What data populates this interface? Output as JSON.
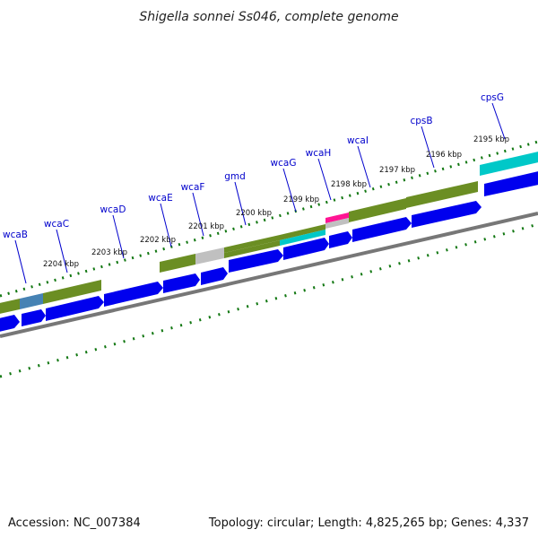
{
  "title": "Shigella sonnei Ss046, complete genome",
  "footer": {
    "accession": "Accession: NC_007384",
    "topology": "Topology: circular; Length: 4,825,265 bp; Genes: 4,337"
  },
  "colors": {
    "cds": "#0000ee",
    "cog_olive": "#6b8e23",
    "cog_cyan": "#00c8c8",
    "cog_steelblue": "#4682b4",
    "cog_gray": "#bbbbbb",
    "cog_pink": "#ff1493",
    "backbone": "#777777",
    "gc_ticks": "#117711",
    "gene_label": "#0000cc"
  },
  "gene_labels": [
    "wcaB",
    "wcaC",
    "wcaD",
    "wcaE",
    "wcaF",
    "gmd",
    "wcaG",
    "wcaH",
    "wcaI",
    "cpsB",
    "cpsG"
  ],
  "kbp_labels": [
    "2204 kbp",
    "2203 kbp",
    "2202 kbp",
    "2201 kbp",
    "2200 kbp",
    "2199 kbp",
    "2198 kbp",
    "2197 kbp",
    "2196 kbp",
    "2195 kbp"
  ]
}
